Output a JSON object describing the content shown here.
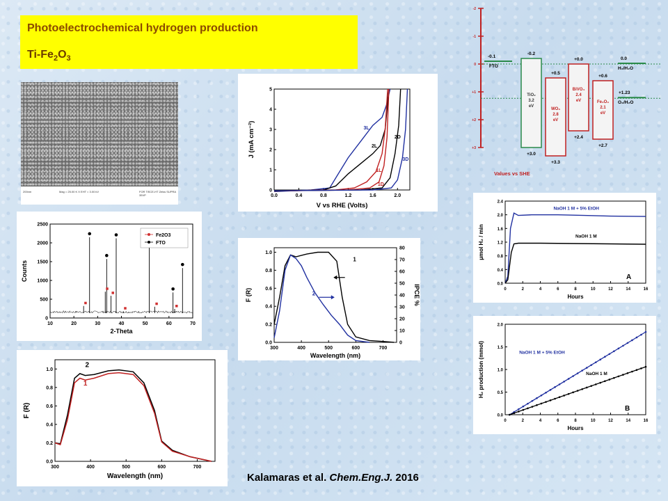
{
  "title": {
    "line1": "Photoelectrochemical hydrogen production",
    "line2_main": "Ti-Fe",
    "line2_sub1": "2",
    "line2_mid": "O",
    "line2_sub2": "3"
  },
  "citation": {
    "authors": "Kalamaras et al. ",
    "journal": "Chem.Eng.J.",
    "year": " 2016"
  },
  "sem": {
    "caption_left": "200nm",
    "caption_mid": "Mag = 25.00 K X   EHT = 3.00 kV",
    "caption_right": "FOR TiSCE-HT  Zeiss SUPRA 35VP"
  },
  "chart_data": [
    {
      "id": "xrd",
      "type": "line",
      "xlabel": "2-Theta",
      "ylabel": "Counts",
      "xlim": [
        10,
        70
      ],
      "ylim": [
        0,
        2500
      ],
      "xticks": [
        "10",
        "20",
        "30",
        "40",
        "50",
        "60",
        "70"
      ],
      "yticks": [
        "0",
        "500",
        "1000",
        "1500",
        "2000",
        "2500"
      ],
      "legend": [
        {
          "name": "Fe2O3",
          "color": "#d03030"
        },
        {
          "name": "FTO",
          "color": "#000000"
        }
      ],
      "peaks_fto": [
        [
          26.6,
          2150
        ],
        [
          33.8,
          1570
        ],
        [
          37.8,
          2120
        ],
        [
          51.7,
          2200
        ],
        [
          61.7,
          680
        ],
        [
          65.7,
          1330
        ]
      ],
      "peaks_fe2o3": [
        [
          24.1,
          320
        ],
        [
          33.2,
          700
        ],
        [
          35.6,
          590
        ],
        [
          40.8,
          180
        ],
        [
          54.0,
          300
        ],
        [
          62.4,
          240
        ]
      ],
      "baseline": 130
    },
    {
      "id": "jv",
      "type": "line",
      "xlabel": "V vs RHE (Volts)",
      "ylabel": "J (mA cm⁻²)",
      "xlim": [
        0,
        2.2
      ],
      "ylim": [
        0,
        5
      ],
      "xticks": [
        "0.0",
        "0.4",
        "0.8",
        "1.2",
        "1.6",
        "2.0"
      ],
      "yticks": [
        "0",
        "1",
        "2",
        "3",
        "4",
        "5"
      ],
      "series": [
        {
          "name": "3L",
          "color": "#2030a0",
          "points": [
            [
              0,
              -0.08
            ],
            [
              0.6,
              0
            ],
            [
              0.9,
              0.1
            ],
            [
              1.0,
              0.6
            ],
            [
              1.2,
              1.6
            ],
            [
              1.4,
              2.4
            ],
            [
              1.6,
              3.2
            ],
            [
              1.75,
              3.6
            ],
            [
              1.82,
              4.2
            ],
            [
              1.88,
              5
            ]
          ]
        },
        {
          "name": "2L",
          "color": "#000000",
          "points": [
            [
              0,
              -0.06
            ],
            [
              0.8,
              0
            ],
            [
              1.0,
              0.2
            ],
            [
              1.2,
              0.8
            ],
            [
              1.4,
              1.3
            ],
            [
              1.6,
              1.8
            ],
            [
              1.72,
              2.2
            ],
            [
              1.8,
              3
            ],
            [
              1.86,
              5
            ]
          ]
        },
        {
          "name": "1L",
          "color": "#c02020",
          "points": [
            [
              0,
              -0.05
            ],
            [
              1.0,
              0
            ],
            [
              1.3,
              0.1
            ],
            [
              1.5,
              0.4
            ],
            [
              1.65,
              0.9
            ],
            [
              1.75,
              1.8
            ],
            [
              1.8,
              3
            ],
            [
              1.84,
              5
            ]
          ]
        },
        {
          "name": "1D",
          "color": "#c02020",
          "points": [
            [
              0,
              -0.05
            ],
            [
              1.2,
              0
            ],
            [
              1.55,
              0.1
            ],
            [
              1.7,
              0.4
            ],
            [
              1.78,
              1.2
            ],
            [
              1.83,
              2.6
            ],
            [
              1.86,
              5
            ]
          ]
        },
        {
          "name": "2D",
          "color": "#000000",
          "points": [
            [
              0,
              -0.04
            ],
            [
              1.4,
              0
            ],
            [
              1.75,
              0.1
            ],
            [
              1.88,
              0.6
            ],
            [
              1.96,
              1.8
            ],
            [
              2.02,
              3.2
            ],
            [
              2.05,
              5
            ]
          ]
        },
        {
          "name": "3D",
          "color": "#2030a0",
          "points": [
            [
              0,
              -0.04
            ],
            [
              1.6,
              0
            ],
            [
              1.9,
              0.1
            ],
            [
              2.0,
              0.5
            ],
            [
              2.08,
              1.6
            ],
            [
              2.13,
              3
            ],
            [
              2.16,
              5
            ]
          ]
        }
      ]
    },
    {
      "id": "ipce",
      "type": "line",
      "xlabel": "Wavelength (nm)",
      "ylabel": "F (R)",
      "y2label": "IPCE %",
      "xlim": [
        300,
        750
      ],
      "ylim": [
        0,
        1.05
      ],
      "y2lim": [
        0,
        80
      ],
      "xticks": [
        "300",
        "400",
        "500",
        "600",
        "700"
      ],
      "yticks": [
        "0.0",
        "0.2",
        "0.4",
        "0.6",
        "0.8",
        "1.0"
      ],
      "y2ticks": [
        "0",
        "10",
        "20",
        "30",
        "40",
        "50",
        "60",
        "70",
        "80"
      ],
      "series": [
        {
          "name": "1",
          "color": "#000000",
          "points": [
            [
              300,
              0.2
            ],
            [
              320,
              0.5
            ],
            [
              340,
              0.85
            ],
            [
              360,
              0.97
            ],
            [
              380,
              0.95
            ],
            [
              420,
              0.98
            ],
            [
              460,
              1.0
            ],
            [
              500,
              1.0
            ],
            [
              530,
              0.9
            ],
            [
              550,
              0.5
            ],
            [
              570,
              0.2
            ],
            [
              600,
              0.06
            ],
            [
              650,
              0.02
            ],
            [
              700,
              0.01
            ],
            [
              740,
              0.0
            ]
          ]
        },
        {
          "name": "2",
          "color": "#2030a0",
          "points": [
            [
              300,
              0.05
            ],
            [
              320,
              0.35
            ],
            [
              340,
              0.8
            ],
            [
              360,
              0.97
            ],
            [
              380,
              0.93
            ],
            [
              400,
              0.85
            ],
            [
              420,
              0.72
            ],
            [
              450,
              0.55
            ],
            [
              480,
              0.42
            ],
            [
              510,
              0.3
            ],
            [
              540,
              0.2
            ],
            [
              570,
              0.08
            ],
            [
              600,
              0.02
            ],
            [
              650,
              0.0
            ]
          ]
        }
      ]
    },
    {
      "id": "abs",
      "type": "line",
      "xlabel": "Wavelength (nm)",
      "ylabel": "F (R)",
      "xlim": [
        300,
        750
      ],
      "ylim": [
        0,
        1.1
      ],
      "xticks": [
        "300",
        "400",
        "500",
        "600",
        "700"
      ],
      "yticks": [
        "0.0",
        "0.2",
        "0.4",
        "0.6",
        "0.8",
        "1.0"
      ],
      "series": [
        {
          "name": "2",
          "color": "#000000",
          "points": [
            [
              300,
              0.2
            ],
            [
              315,
              0.19
            ],
            [
              335,
              0.5
            ],
            [
              355,
              0.9
            ],
            [
              370,
              0.95
            ],
            [
              385,
              0.93
            ],
            [
              410,
              0.94
            ],
            [
              450,
              0.98
            ],
            [
              480,
              0.99
            ],
            [
              520,
              0.97
            ],
            [
              550,
              0.85
            ],
            [
              580,
              0.55
            ],
            [
              600,
              0.22
            ],
            [
              630,
              0.12
            ],
            [
              680,
              0.05
            ],
            [
              740,
              0.0
            ]
          ]
        },
        {
          "name": "1",
          "color": "#c02020",
          "points": [
            [
              300,
              0.2
            ],
            [
              315,
              0.18
            ],
            [
              335,
              0.45
            ],
            [
              355,
              0.85
            ],
            [
              370,
              0.9
            ],
            [
              385,
              0.88
            ],
            [
              410,
              0.9
            ],
            [
              450,
              0.95
            ],
            [
              480,
              0.96
            ],
            [
              520,
              0.94
            ],
            [
              550,
              0.82
            ],
            [
              580,
              0.52
            ],
            [
              600,
              0.21
            ],
            [
              630,
              0.11
            ],
            [
              680,
              0.05
            ],
            [
              740,
              0.0
            ]
          ]
        }
      ]
    },
    {
      "id": "rateA",
      "type": "line",
      "xlabel": "Hours",
      "ylabel": "μmol H₂ / min",
      "xlim": [
        0,
        16
      ],
      "ylim": [
        0,
        2.4
      ],
      "panel_letter": "A",
      "xticks": [
        "0",
        "2",
        "4",
        "6",
        "8",
        "10",
        "12",
        "14",
        "16"
      ],
      "yticks": [
        "0.0",
        "0.4",
        "0.8",
        "1.2",
        "1.6",
        "2.0",
        "2.4"
      ],
      "series": [
        {
          "name": "NaOH 1 M + 5% EtOH",
          "color": "#2030a0",
          "points": [
            [
              0,
              0
            ],
            [
              0.3,
              0.2
            ],
            [
              0.6,
              1.6
            ],
            [
              1,
              2.05
            ],
            [
              1.5,
              1.98
            ],
            [
              3,
              2.0
            ],
            [
              6,
              2.0
            ],
            [
              9,
              1.98
            ],
            [
              12,
              1.96
            ],
            [
              16,
              1.95
            ]
          ]
        },
        {
          "name": "NaOH 1 M",
          "color": "#000000",
          "points": [
            [
              0,
              0
            ],
            [
              0.3,
              0.1
            ],
            [
              0.7,
              0.9
            ],
            [
              1,
              1.15
            ],
            [
              1.5,
              1.17
            ],
            [
              4,
              1.17
            ],
            [
              8,
              1.16
            ],
            [
              12,
              1.15
            ],
            [
              16,
              1.14
            ]
          ]
        }
      ]
    },
    {
      "id": "prodB",
      "type": "line",
      "xlabel": "Hours",
      "ylabel": "H₂ production (mmol)",
      "xlim": [
        0,
        16
      ],
      "ylim": [
        0,
        2.0
      ],
      "panel_letter": "B",
      "xticks": [
        "0",
        "2",
        "4",
        "6",
        "8",
        "10",
        "12",
        "14",
        "16"
      ],
      "yticks": [
        "0.0",
        "0.5",
        "1.0",
        "1.5",
        "2.0"
      ],
      "series": [
        {
          "name": "NaOH 1 M + 5% EtOH",
          "color": "#2030a0",
          "points": [
            [
              0.5,
              0
            ],
            [
              16,
              1.83
            ]
          ]
        },
        {
          "name": "NaOH 1 M",
          "color": "#000000",
          "points": [
            [
              0.5,
              0
            ],
            [
              16,
              1.06
            ]
          ]
        }
      ]
    }
  ],
  "band_diagram": {
    "axis_ticks": [
      "-2",
      "-1",
      "0",
      "+1",
      "+2",
      "+3"
    ],
    "caption": "Values vs SHE",
    "redox": [
      {
        "label": "H₂/H₂O",
        "value": "0.0"
      },
      {
        "label": "O₂/H₂O",
        "value": "+1.23"
      }
    ],
    "fto": {
      "label": "FTO",
      "value": "-0.1"
    },
    "materials": [
      {
        "name": "TiO₂",
        "gap": "3.2",
        "unit": "eV",
        "cb": "-0.2",
        "vb": "+3.0",
        "color": "#2a8a4a"
      },
      {
        "name": "WO₃",
        "gap": "2.8",
        "unit": "eV",
        "cb": "+0.5",
        "vb": "+3.3",
        "color": "#c02020"
      },
      {
        "name": "BiVO₄",
        "gap": "2.4",
        "unit": "eV",
        "cb": "+0.0",
        "vb": "+2.4",
        "color": "#c02020"
      },
      {
        "name": "Fe₂O₃",
        "gap": "2.1",
        "unit": "eV",
        "cb": "+0.6",
        "vb": "+2.7",
        "color": "#c02020"
      }
    ]
  }
}
